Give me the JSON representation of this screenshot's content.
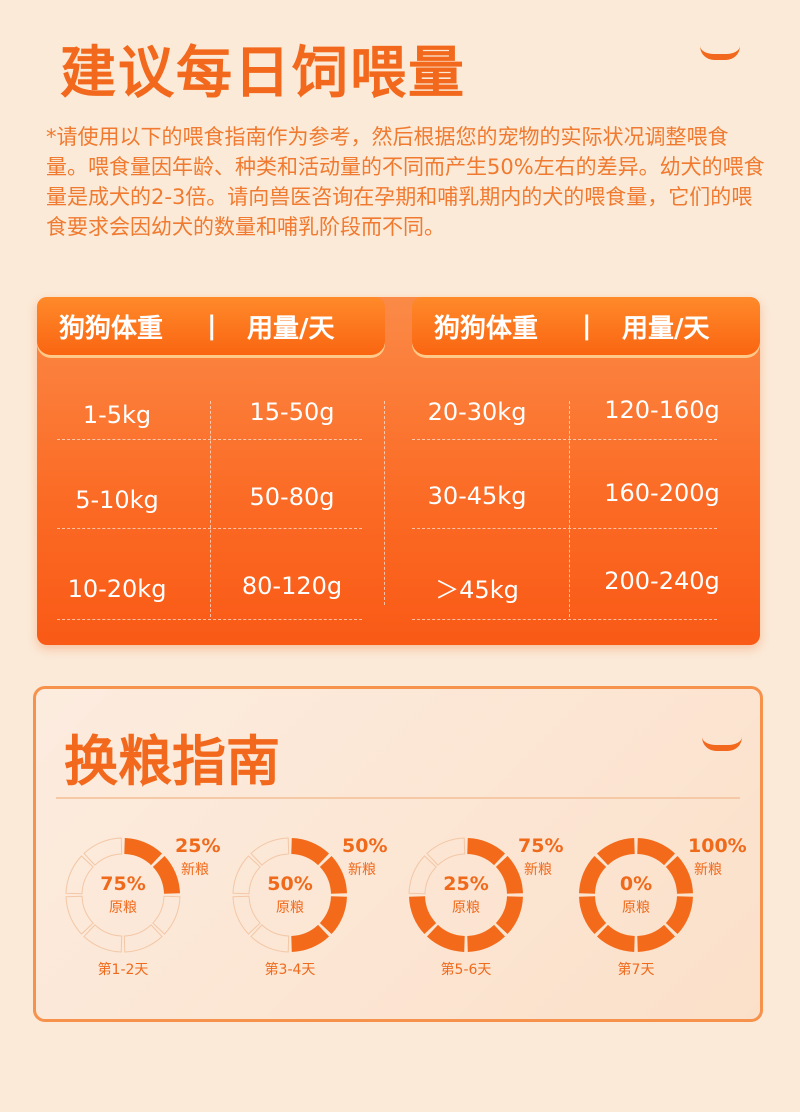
{
  "title": "建议每日饲喂量",
  "intro": "*请使用以下的喂食指南作为参考，然后根据您的宠物的实际状况调整喂食量。喂食量因年龄、种类和活动量的不同而产生50%左右的差异。幼犬的喂食量是成犬的2-3倍。请向兽医咨询在孕期和哺乳期内的犬的喂食量，它们的喂食要求会因幼犬的数量和哺乳阶段而不同。",
  "table": {
    "header": {
      "weight": "狗狗体重",
      "sep": "|",
      "amount": "用量/天"
    },
    "left": [
      [
        "1-5kg",
        "15-50g"
      ],
      [
        "5-10kg",
        "50-80g"
      ],
      [
        "10-20kg",
        "80-120g"
      ]
    ],
    "right": [
      [
        "20-30kg",
        "120-160g"
      ],
      [
        "30-45kg",
        "160-200g"
      ],
      [
        "＞45kg",
        "200-240g"
      ]
    ]
  },
  "guide": {
    "title": "换粮指南",
    "new_label": "新粮",
    "old_label": "原粮",
    "stages": [
      {
        "new": "25%",
        "old": "75%",
        "day": "第1-2天",
        "fill": 0.25
      },
      {
        "new": "50%",
        "old": "50%",
        "day": "第3-4天",
        "fill": 0.5
      },
      {
        "new": "75%",
        "old": "25%",
        "day": "第5-6天",
        "fill": 0.75
      },
      {
        "new": "100%",
        "old": "0%",
        "day": "第7天",
        "fill": 1
      }
    ]
  },
  "colors": {
    "accent": "#f2691d",
    "bg": "#fbead8"
  }
}
